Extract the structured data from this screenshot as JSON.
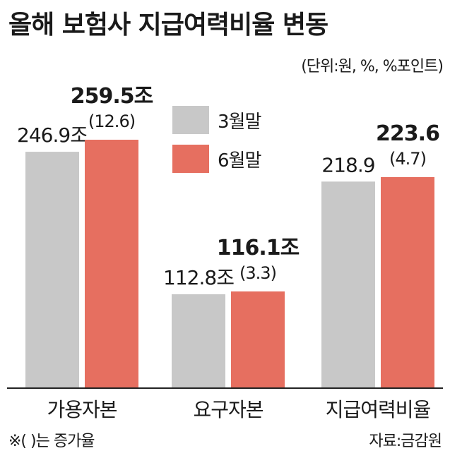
{
  "title": "올해 보험사 지급여력비율 변동",
  "unit_note": "(단위:원, %, %포인트)",
  "footnote": "※(    )는 증가율",
  "source": "자료:금감원",
  "colors": {
    "march": "#c8c8c8",
    "june": "#e66f60",
    "axis": "#222222"
  },
  "chart_data": {
    "type": "bar",
    "title": "올해 보험사 지급여력비율 변동",
    "categories": [
      "가용자본",
      "요구자본",
      "지급여력비율"
    ],
    "series": [
      {
        "name": "3월말",
        "values": [
          246.9,
          112.8,
          218.9
        ],
        "labels": [
          "246.9조",
          "112.8조",
          "218.9"
        ]
      },
      {
        "name": "6월말",
        "values": [
          259.5,
          116.1,
          223.6
        ],
        "labels": [
          "259.5조",
          "116.1조",
          "223.6"
        ],
        "changes": [
          "(12.6)",
          "(3.3)",
          "(4.7)"
        ]
      }
    ],
    "note": "각 항목은 서로 다른 단위(조원, %)이며 항목별 축척이 다름"
  }
}
